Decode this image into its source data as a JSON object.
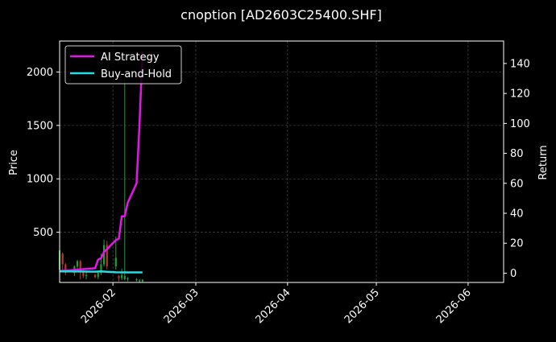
{
  "chart_data": {
    "type": "line",
    "title": "cnoption [AD2603C25400.SHF]",
    "ylabel_left": "Price",
    "ylabel_right": "Return",
    "x_ticks": [
      "2026-02",
      "2026-03",
      "2026-04",
      "2026-05",
      "2026-06"
    ],
    "xlim": [
      "2026-01-14",
      "2026-06-13"
    ],
    "y_left_ticks": [
      500,
      1000,
      1500,
      2000
    ],
    "y_left_lim": [
      30,
      2290
    ],
    "y_right_ticks": [
      0,
      20,
      40,
      60,
      80,
      100,
      120,
      140
    ],
    "y_right_lim": [
      -6.2,
      155
    ],
    "grid": true,
    "legend_position": "top-left",
    "series": [
      {
        "name": "AI Strategy",
        "axis": "right",
        "color": "#e815e8",
        "points": [
          [
            "2026-01-14",
            1.5
          ],
          [
            "2026-01-17",
            1.8
          ],
          [
            "2026-01-20",
            2.3
          ],
          [
            "2026-01-23",
            2.8
          ],
          [
            "2026-01-26",
            3.3
          ],
          [
            "2026-01-27",
            9.0
          ],
          [
            "2026-01-28",
            10.0
          ],
          [
            "2026-01-29",
            14.0
          ],
          [
            "2026-01-30",
            16.0
          ],
          [
            "2026-02-02",
            22.0
          ],
          [
            "2026-02-03",
            23.0
          ],
          [
            "2026-02-04",
            38.0
          ],
          [
            "2026-02-05",
            38.0
          ],
          [
            "2026-02-06",
            47.0
          ],
          [
            "2026-02-09",
            60.0
          ],
          [
            "2026-02-10",
            100.0
          ],
          [
            "2026-02-11",
            148.0
          ]
        ]
      },
      {
        "name": "Buy-and-Hold",
        "axis": "right",
        "color": "#22dde6",
        "points": [
          [
            "2026-01-14",
            1.2
          ],
          [
            "2026-01-20",
            1.1
          ],
          [
            "2026-01-26",
            1.0
          ],
          [
            "2026-01-28",
            1.2
          ],
          [
            "2026-02-02",
            0.6
          ],
          [
            "2026-02-06",
            0.5
          ],
          [
            "2026-02-11",
            0.5
          ]
        ]
      }
    ],
    "candles": {
      "axis": "left",
      "up_color": "#1f9e3a",
      "down_color": "#b53a32",
      "data": [
        {
          "date": "2026-01-14",
          "open": 150,
          "close": 330,
          "low": 100,
          "high": 390
        },
        {
          "date": "2026-01-15",
          "open": 300,
          "close": 200,
          "low": 150,
          "high": 310
        },
        {
          "date": "2026-01-16",
          "open": 200,
          "close": 120,
          "low": 100,
          "high": 210
        },
        {
          "date": "2026-01-19",
          "open": 120,
          "close": 180,
          "low": 90,
          "high": 190
        },
        {
          "date": "2026-01-20",
          "open": 180,
          "close": 230,
          "low": 150,
          "high": 240
        },
        {
          "date": "2026-01-21",
          "open": 230,
          "close": 130,
          "low": 60,
          "high": 240
        },
        {
          "date": "2026-01-22",
          "open": 130,
          "close": 90,
          "low": 70,
          "high": 140
        },
        {
          "date": "2026-01-23",
          "open": 90,
          "close": 100,
          "low": 60,
          "high": 130
        },
        {
          "date": "2026-01-26",
          "open": 100,
          "close": 80,
          "low": 70,
          "high": 110
        },
        {
          "date": "2026-01-27",
          "open": 80,
          "close": 120,
          "low": 60,
          "high": 130
        },
        {
          "date": "2026-01-28",
          "open": 120,
          "close": 200,
          "low": 100,
          "high": 300
        },
        {
          "date": "2026-01-29",
          "open": 200,
          "close": 380,
          "low": 180,
          "high": 430
        },
        {
          "date": "2026-01-30",
          "open": 380,
          "close": 180,
          "low": 150,
          "high": 420
        },
        {
          "date": "2026-02-02",
          "open": 180,
          "close": 260,
          "low": 150,
          "high": 460
        },
        {
          "date": "2026-02-03",
          "open": 90,
          "close": 70,
          "low": 40,
          "high": 100
        },
        {
          "date": "2026-02-04",
          "open": 70,
          "close": 100,
          "low": 50,
          "high": 160
        },
        {
          "date": "2026-02-05",
          "open": 60,
          "close": 90,
          "low": 50,
          "high": 1940
        },
        {
          "date": "2026-02-06",
          "open": 60,
          "close": 70,
          "low": 40,
          "high": 80
        },
        {
          "date": "2026-02-09",
          "open": 50,
          "close": 60,
          "low": 40,
          "high": 70
        },
        {
          "date": "2026-02-10",
          "open": 40,
          "close": 50,
          "low": 30,
          "high": 60
        },
        {
          "date": "2026-02-11",
          "open": 40,
          "close": 55,
          "low": 30,
          "high": 60
        }
      ]
    }
  }
}
